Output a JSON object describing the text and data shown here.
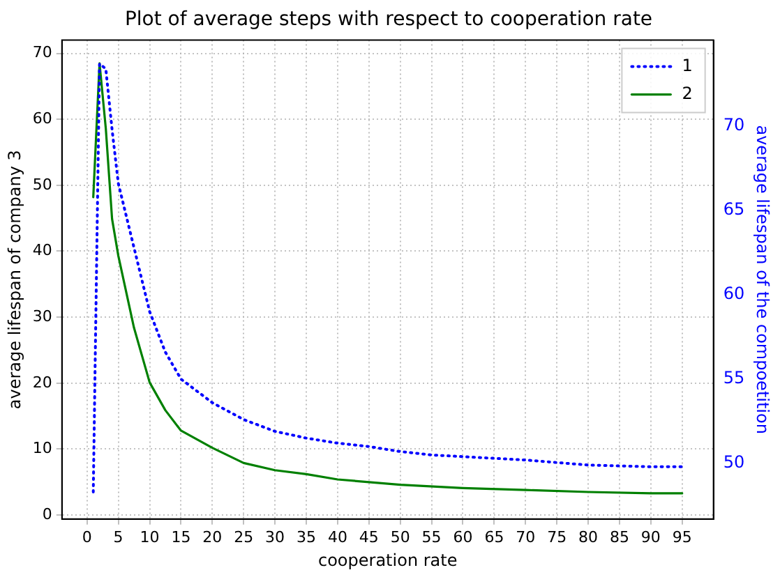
{
  "chart_data": {
    "type": "line",
    "title": "Plot of average steps with respect to cooperation rate",
    "xlabel": "cooperation rate",
    "ylabel": "average lifespan of company 3",
    "y2label": "average lifespan of the compoetition",
    "xlim": [
      -4,
      100
    ],
    "xticks": [
      0,
      5,
      10,
      15,
      20,
      25,
      30,
      35,
      40,
      45,
      50,
      55,
      60,
      65,
      70,
      75,
      80,
      85,
      90,
      95
    ],
    "ylim": [
      -0.6,
      72
    ],
    "yticks": [
      0,
      10,
      20,
      30,
      40,
      50,
      60,
      70
    ],
    "y2lim": [
      46.7,
      75.1
    ],
    "y2ticks": [
      50,
      55,
      60,
      65,
      70
    ],
    "grid": true,
    "legend": "top right",
    "series": [
      {
        "name": "1",
        "color": "#0000ff",
        "axis": "y2",
        "line_style": "dotted",
        "x": [
          1,
          2,
          3,
          4,
          5,
          7.5,
          10,
          12.5,
          15,
          20,
          25,
          30,
          35,
          40,
          45,
          50,
          55,
          60,
          70,
          80,
          90,
          95
        ],
        "values": [
          48.3,
          73.7,
          73.4,
          69.8,
          66.6,
          62.8,
          59.0,
          56.6,
          55.0,
          53.6,
          52.6,
          51.9,
          51.5,
          51.2,
          51.0,
          50.7,
          50.5,
          50.4,
          50.2,
          49.9,
          49.8,
          49.8
        ]
      },
      {
        "name": "2",
        "color": "#008000",
        "axis": "y",
        "line_style": "solid",
        "x": [
          1,
          2,
          3,
          4,
          5,
          7.5,
          10,
          12.5,
          15,
          20,
          25,
          30,
          35,
          40,
          50,
          60,
          70,
          80,
          90,
          95
        ],
        "values": [
          48.2,
          68.5,
          58.6,
          44.9,
          39.3,
          28.4,
          20.1,
          15.9,
          12.8,
          10.2,
          7.9,
          6.8,
          6.2,
          5.4,
          4.6,
          4.1,
          3.8,
          3.5,
          3.3,
          3.3
        ]
      }
    ]
  }
}
